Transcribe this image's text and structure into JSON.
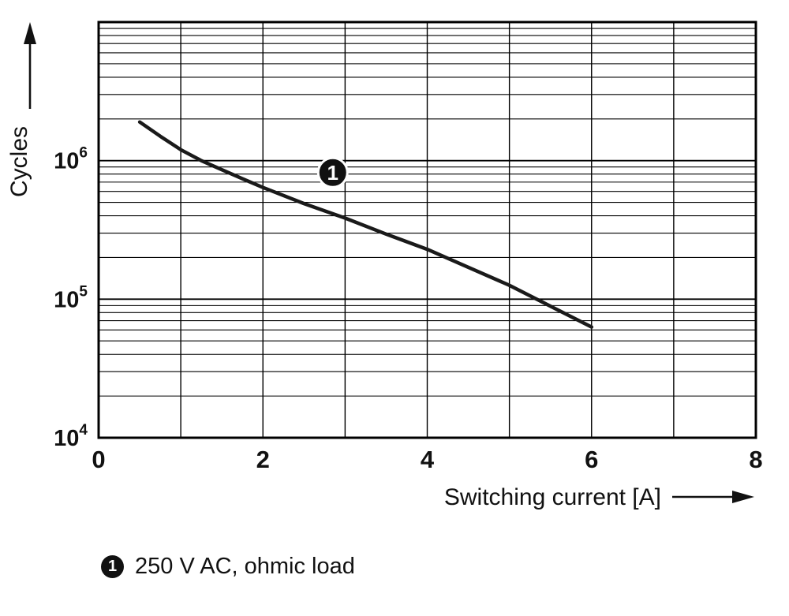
{
  "figure": {
    "legend": {
      "marker_label": "1",
      "text": "250 V AC, ohmic load"
    }
  },
  "chart_data": {
    "type": "line",
    "title": "",
    "xlabel": "Switching current [A]",
    "ylabel": "Cycles",
    "xlim": [
      0,
      8
    ],
    "x_grid_step": 1,
    "x_ticks": [
      0,
      2,
      4,
      6,
      8
    ],
    "y_scale": "log",
    "ylim": [
      10000,
      10000000
    ],
    "y_tick_exponents": [
      4,
      5,
      6
    ],
    "grid": true,
    "legend_position": "below-left",
    "series": [
      {
        "name": "250 V AC, ohmic load",
        "marker_label": "1",
        "x": [
          0.5,
          0.75,
          1.0,
          1.25,
          1.5,
          1.75,
          2.0,
          2.5,
          3.0,
          3.5,
          4.0,
          4.5,
          5.0,
          5.5,
          6.0
        ],
        "y": [
          1900000,
          1500000,
          1200000,
          1000000,
          860000,
          740000,
          640000,
          490000,
          385000,
          295000,
          229000,
          170000,
          126000,
          89000,
          63000
        ]
      }
    ],
    "annotation": {
      "label": "1",
      "x": 2.85,
      "y": 820000
    },
    "colors": {
      "grid": "#000000",
      "border": "#000000",
      "line": "#1a1a1a",
      "marker_bg": "#111111",
      "marker_text": "#ffffff",
      "text": "#111111"
    }
  }
}
